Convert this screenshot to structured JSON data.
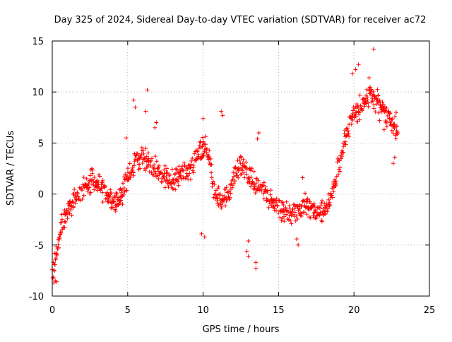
{
  "chart_data": {
    "type": "scatter",
    "title": "Day 325 of 2024, Sidereal Day-to-day VTEC variation (SDTVAR) for receiver ac72",
    "xlabel": "GPS time / hours",
    "ylabel": "SDTVAR / TECUs",
    "xlim": [
      0,
      25
    ],
    "ylim": [
      -10,
      15
    ],
    "xticks": [
      0,
      5,
      10,
      15,
      20,
      25
    ],
    "yticks": [
      -10,
      -5,
      0,
      5,
      10,
      15
    ],
    "grid": true,
    "marker": "+",
    "color": "#ff0000",
    "series": [
      {
        "name": "SDTVAR",
        "trend_x": [
          0.0,
          0.1,
          0.2,
          0.3,
          0.4,
          0.5,
          0.6,
          0.8,
          1.0,
          1.2,
          1.5,
          1.8,
          2.0,
          2.3,
          2.6,
          3.0,
          3.3,
          3.6,
          3.9,
          4.2,
          4.5,
          4.8,
          5.0,
          5.3,
          5.6,
          5.9,
          6.2,
          6.5,
          6.8,
          7.0,
          7.3,
          7.6,
          7.9,
          8.2,
          8.5,
          8.8,
          9.1,
          9.4,
          9.7,
          10.0,
          10.2,
          10.4,
          10.6,
          10.8,
          11.0,
          11.3,
          11.6,
          11.9,
          12.2,
          12.5,
          12.8,
          13.1,
          13.4,
          13.7,
          14.0,
          14.3,
          14.6,
          14.9,
          15.2,
          15.5,
          15.8,
          16.1,
          16.4,
          16.7,
          17.0,
          17.3,
          17.6,
          17.9,
          18.2,
          18.5,
          18.8,
          19.1,
          19.4,
          19.7,
          20.0,
          20.3,
          20.6,
          20.9,
          21.2,
          21.5,
          21.8,
          22.1,
          22.4,
          22.7,
          22.9
        ],
        "trend_y": [
          -7.8,
          -7.0,
          -6.4,
          -5.6,
          -4.8,
          -4.0,
          -3.3,
          -2.6,
          -2.0,
          -1.2,
          -0.6,
          -0.1,
          0.5,
          0.9,
          1.3,
          1.0,
          0.5,
          0.0,
          -0.5,
          -0.9,
          -0.2,
          0.7,
          1.9,
          2.7,
          3.2,
          3.6,
          3.3,
          3.0,
          2.6,
          2.2,
          1.8,
          1.6,
          1.4,
          1.6,
          1.9,
          2.1,
          2.5,
          3.1,
          3.8,
          4.6,
          5.0,
          3.8,
          1.5,
          -0.6,
          -0.3,
          -0.5,
          -0.4,
          1.0,
          2.2,
          2.8,
          2.6,
          2.0,
          1.2,
          0.8,
          0.4,
          -0.6,
          -0.9,
          -1.2,
          -1.6,
          -1.9,
          -2.0,
          -1.9,
          -1.4,
          -1.0,
          -1.2,
          -1.5,
          -2.0,
          -1.8,
          -1.2,
          -0.3,
          1.6,
          3.4,
          5.2,
          6.9,
          7.8,
          8.4,
          8.9,
          9.4,
          9.6,
          9.2,
          8.6,
          7.9,
          7.3,
          6.6,
          6.1
        ],
        "spread": 1.3,
        "extra_points": [
          {
            "x": 21.3,
            "y": 14.2
          },
          {
            "x": 20.3,
            "y": 12.7
          },
          {
            "x": 20.1,
            "y": 12.2
          },
          {
            "x": 19.9,
            "y": 11.8
          },
          {
            "x": 21.0,
            "y": 11.4
          },
          {
            "x": 6.3,
            "y": 10.2
          },
          {
            "x": 5.4,
            "y": 9.2
          },
          {
            "x": 5.5,
            "y": 8.5
          },
          {
            "x": 6.2,
            "y": 8.1
          },
          {
            "x": 11.2,
            "y": 8.1
          },
          {
            "x": 11.3,
            "y": 7.7
          },
          {
            "x": 10.0,
            "y": 7.4
          },
          {
            "x": 6.9,
            "y": 7.0
          },
          {
            "x": 6.8,
            "y": 6.5
          },
          {
            "x": 13.7,
            "y": 6.0
          },
          {
            "x": 13.6,
            "y": 5.4
          },
          {
            "x": 4.9,
            "y": 5.5
          },
          {
            "x": 16.6,
            "y": 1.6
          },
          {
            "x": 13.0,
            "y": -4.6
          },
          {
            "x": 12.9,
            "y": -5.6
          },
          {
            "x": 13.0,
            "y": -6.1
          },
          {
            "x": 13.5,
            "y": -6.7
          },
          {
            "x": 13.5,
            "y": -7.3
          },
          {
            "x": 16.3,
            "y": -5.0
          },
          {
            "x": 16.2,
            "y": -4.4
          },
          {
            "x": 10.1,
            "y": -4.2
          },
          {
            "x": 9.9,
            "y": -3.9
          },
          {
            "x": 0.1,
            "y": -8.7
          },
          {
            "x": 0.2,
            "y": -8.5
          },
          {
            "x": 0.3,
            "y": -8.6
          },
          {
            "x": 22.6,
            "y": 3.0
          },
          {
            "x": 22.7,
            "y": 3.6
          },
          {
            "x": 22.8,
            "y": 8.0
          },
          {
            "x": 22.0,
            "y": 6.3
          },
          {
            "x": 21.7,
            "y": 7.2
          }
        ]
      }
    ]
  }
}
